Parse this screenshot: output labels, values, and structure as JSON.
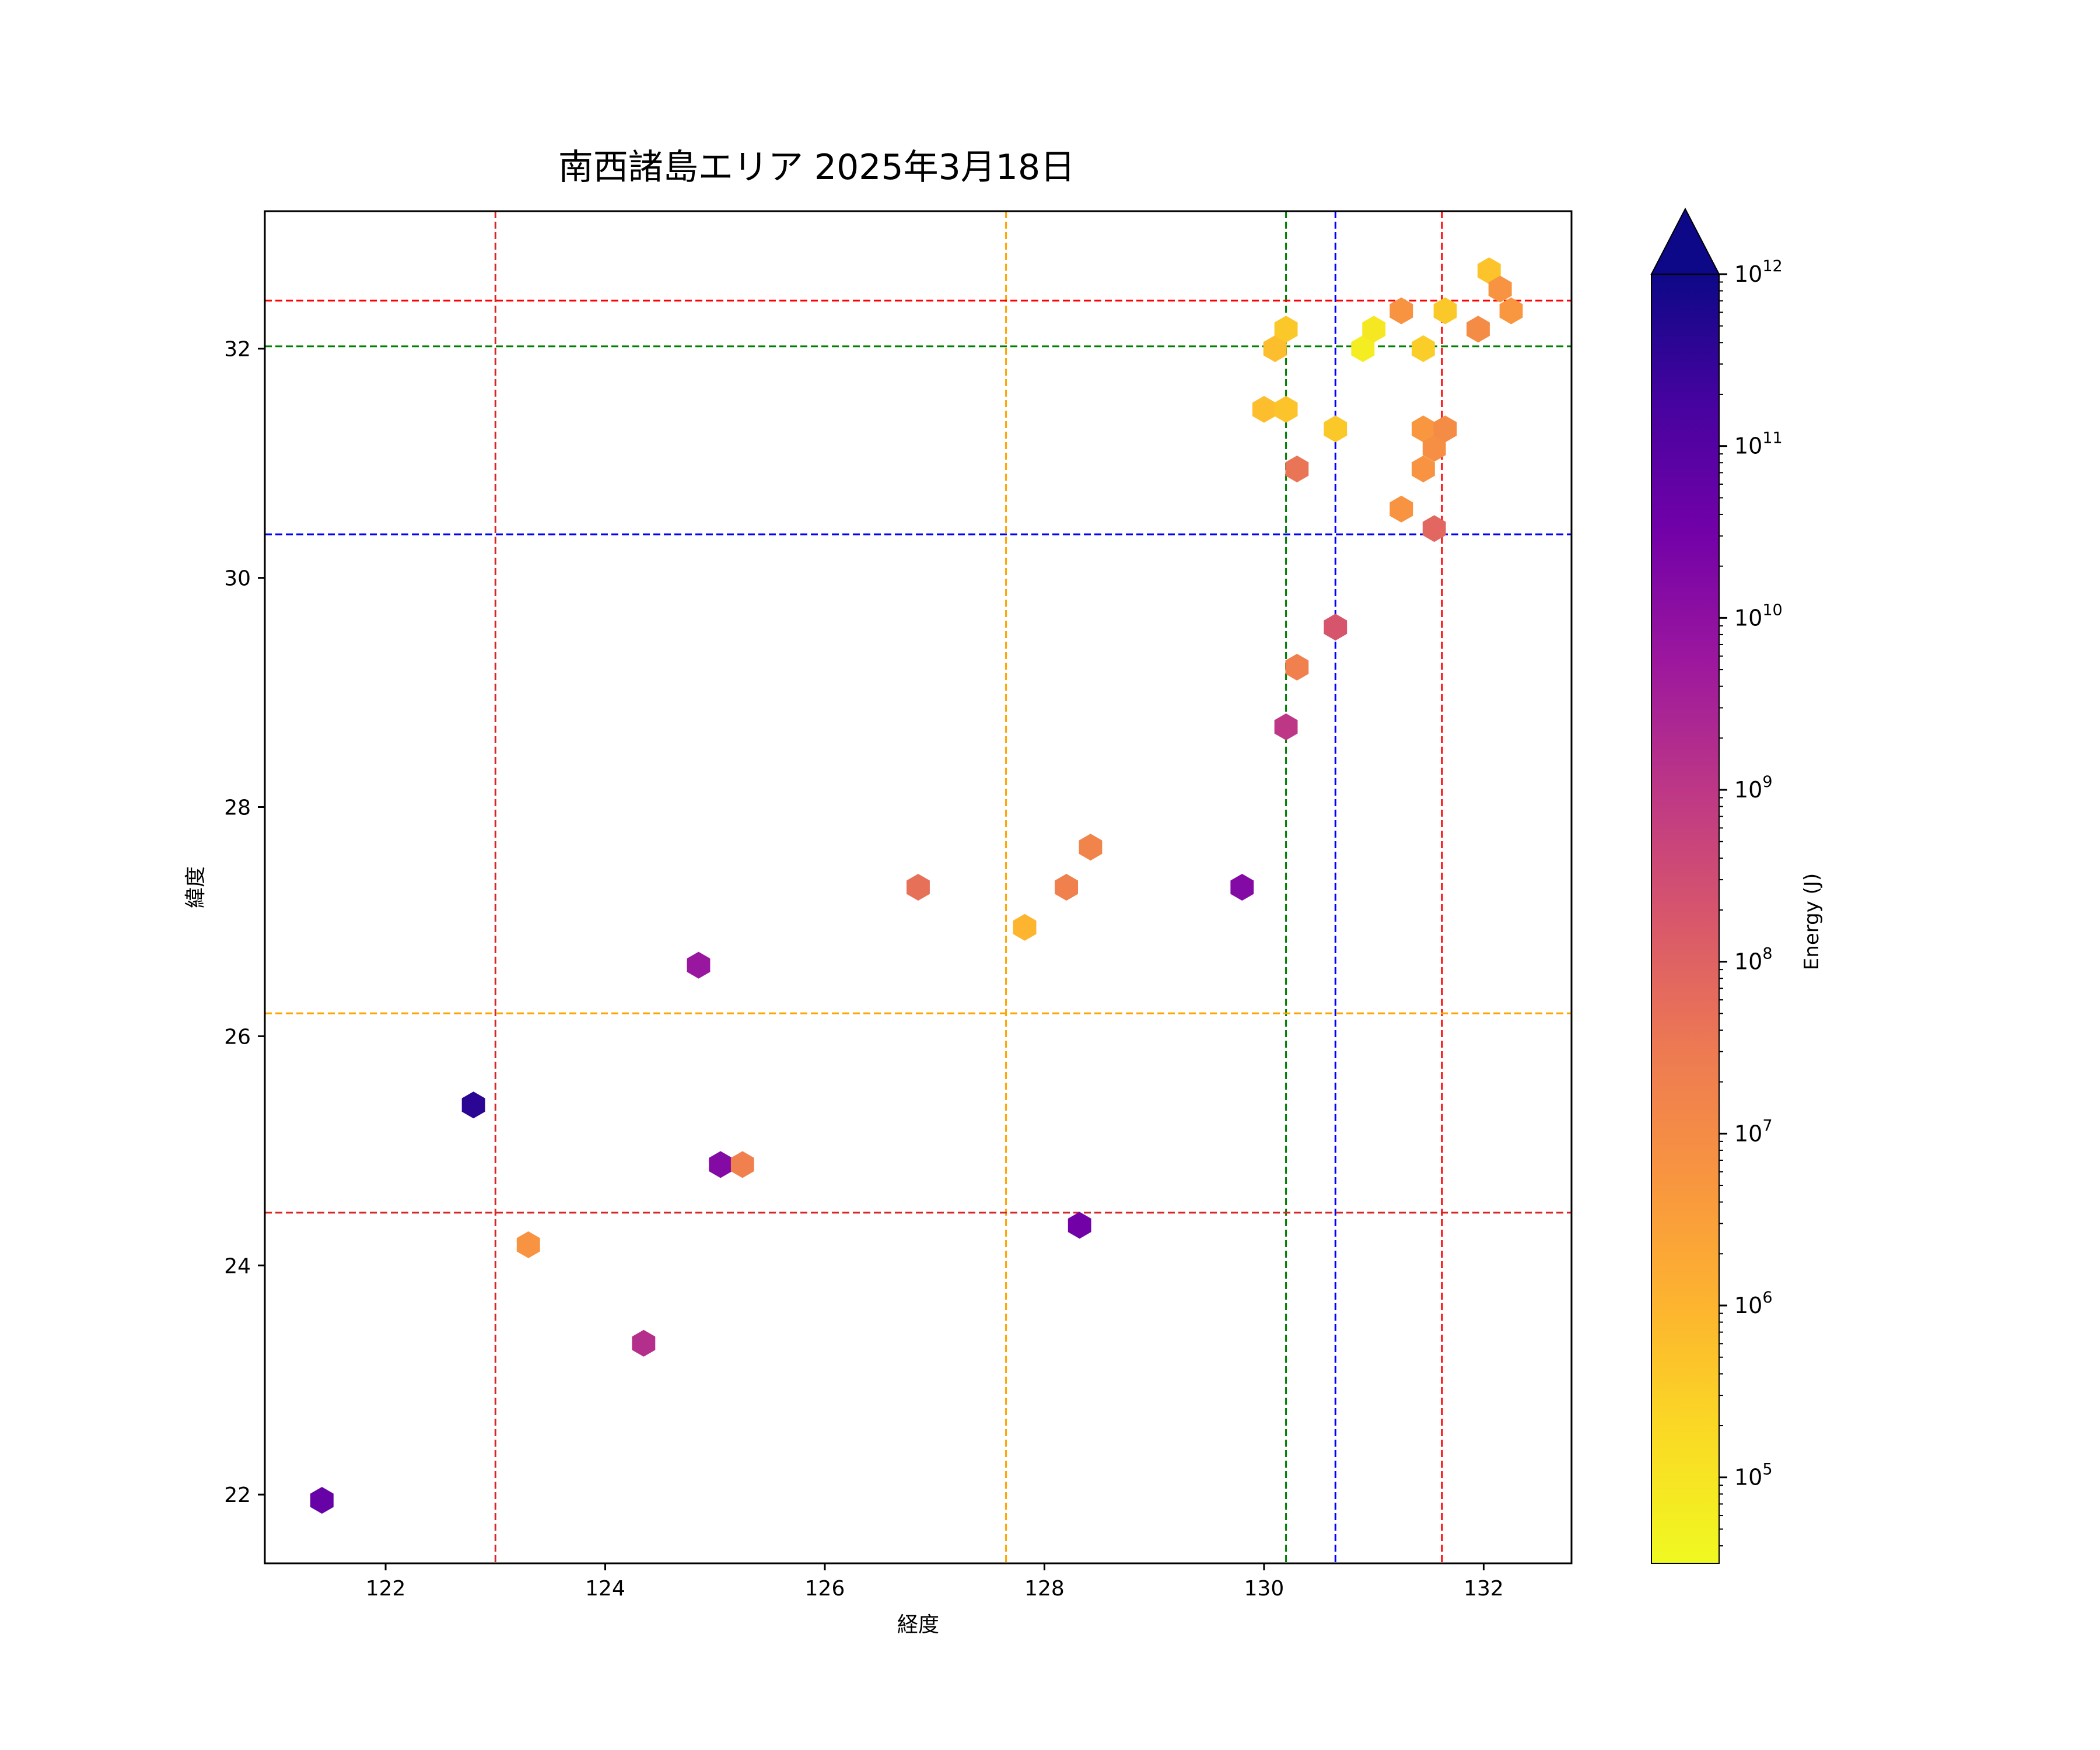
{
  "chart_data": {
    "type": "scatter",
    "title": "南西諸島エリア 2025年3月18日",
    "xlabel": "経度",
    "ylabel": "緯度",
    "xlim": [
      120.9,
      132.8
    ],
    "ylim": [
      21.4,
      33.2
    ],
    "xticks": [
      122,
      124,
      126,
      128,
      130,
      132
    ],
    "yticks": [
      22,
      24,
      26,
      28,
      30,
      32
    ],
    "marker": "hexagon",
    "colormap": "plasma_r",
    "colorbar": {
      "label": "Energy (J)",
      "scale": "log",
      "range": [
        4.5,
        12
      ],
      "extend": "max",
      "ticks": [
        {
          "exp": 5,
          "base": "10",
          "sup": "5"
        },
        {
          "exp": 6,
          "base": "10",
          "sup": "6"
        },
        {
          "exp": 7,
          "base": "10",
          "sup": "7"
        },
        {
          "exp": 8,
          "base": "10",
          "sup": "8"
        },
        {
          "exp": 9,
          "base": "10",
          "sup": "9"
        },
        {
          "exp": 10,
          "base": "10",
          "sup": "10"
        },
        {
          "exp": 11,
          "base": "10",
          "sup": "11"
        },
        {
          "exp": 12,
          "base": "10",
          "sup": "12"
        }
      ]
    },
    "reference_lines": [
      {
        "orientation": "vertical",
        "value": 123.0,
        "color": "#d62728"
      },
      {
        "orientation": "vertical",
        "value": 127.65,
        "color": "#ffa500"
      },
      {
        "orientation": "vertical",
        "value": 130.2,
        "color": "#008000"
      },
      {
        "orientation": "vertical",
        "value": 130.65,
        "color": "#0000ff"
      },
      {
        "orientation": "vertical",
        "value": 131.62,
        "color": "#ff0000"
      },
      {
        "orientation": "horizontal",
        "value": 32.42,
        "color": "#ff0000"
      },
      {
        "orientation": "horizontal",
        "value": 32.02,
        "color": "#008000"
      },
      {
        "orientation": "horizontal",
        "value": 30.38,
        "color": "#0000ff"
      },
      {
        "orientation": "horizontal",
        "value": 26.2,
        "color": "#ffa500"
      },
      {
        "orientation": "horizontal",
        "value": 24.46,
        "color": "#d62728"
      }
    ],
    "points": [
      {
        "x": 121.42,
        "y": 21.95,
        "log_energy": 10.7
      },
      {
        "x": 122.8,
        "y": 25.4,
        "log_energy": 11.6
      },
      {
        "x": 123.3,
        "y": 24.18,
        "log_energy": 6.8
      },
      {
        "x": 124.35,
        "y": 23.32,
        "log_energy": 9.2
      },
      {
        "x": 124.85,
        "y": 26.62,
        "log_energy": 9.8
      },
      {
        "x": 125.05,
        "y": 24.88,
        "log_energy": 10.2
      },
      {
        "x": 125.25,
        "y": 24.88,
        "log_energy": 7.3
      },
      {
        "x": 126.85,
        "y": 27.3,
        "log_energy": 7.7
      },
      {
        "x": 127.82,
        "y": 26.95,
        "log_energy": 6.0
      },
      {
        "x": 128.2,
        "y": 27.3,
        "log_energy": 7.3
      },
      {
        "x": 128.42,
        "y": 27.65,
        "log_energy": 7.2
      },
      {
        "x": 128.32,
        "y": 24.35,
        "log_energy": 10.5
      },
      {
        "x": 129.8,
        "y": 27.3,
        "log_energy": 10.2
      },
      {
        "x": 130.2,
        "y": 28.7,
        "log_energy": 9.0
      },
      {
        "x": 130.3,
        "y": 29.22,
        "log_energy": 7.3
      },
      {
        "x": 130.65,
        "y": 29.57,
        "log_energy": 8.3
      },
      {
        "x": 130.3,
        "y": 30.95,
        "log_energy": 7.6
      },
      {
        "x": 130.0,
        "y": 31.47,
        "log_energy": 5.8
      },
      {
        "x": 130.2,
        "y": 31.47,
        "log_energy": 5.7
      },
      {
        "x": 130.1,
        "y": 32.0,
        "log_energy": 5.8
      },
      {
        "x": 130.2,
        "y": 32.17,
        "log_energy": 5.6
      },
      {
        "x": 130.65,
        "y": 31.3,
        "log_energy": 5.6
      },
      {
        "x": 130.9,
        "y": 32.0,
        "log_energy": 4.8
      },
      {
        "x": 131.0,
        "y": 32.17,
        "log_energy": 4.9
      },
      {
        "x": 131.25,
        "y": 32.33,
        "log_energy": 6.8
      },
      {
        "x": 131.45,
        "y": 32.0,
        "log_energy": 5.5
      },
      {
        "x": 131.45,
        "y": 31.3,
        "log_energy": 6.7
      },
      {
        "x": 131.55,
        "y": 31.13,
        "log_energy": 6.9
      },
      {
        "x": 131.65,
        "y": 31.3,
        "log_energy": 7.0
      },
      {
        "x": 131.45,
        "y": 30.95,
        "log_energy": 6.8
      },
      {
        "x": 131.25,
        "y": 30.6,
        "log_energy": 6.8
      },
      {
        "x": 131.55,
        "y": 30.43,
        "log_energy": 7.9
      },
      {
        "x": 131.65,
        "y": 32.33,
        "log_energy": 5.6
      },
      {
        "x": 131.95,
        "y": 32.17,
        "log_energy": 7.0
      },
      {
        "x": 132.05,
        "y": 32.68,
        "log_energy": 5.7
      },
      {
        "x": 132.15,
        "y": 32.52,
        "log_energy": 6.8
      },
      {
        "x": 132.25,
        "y": 32.33,
        "log_energy": 6.7
      }
    ]
  }
}
